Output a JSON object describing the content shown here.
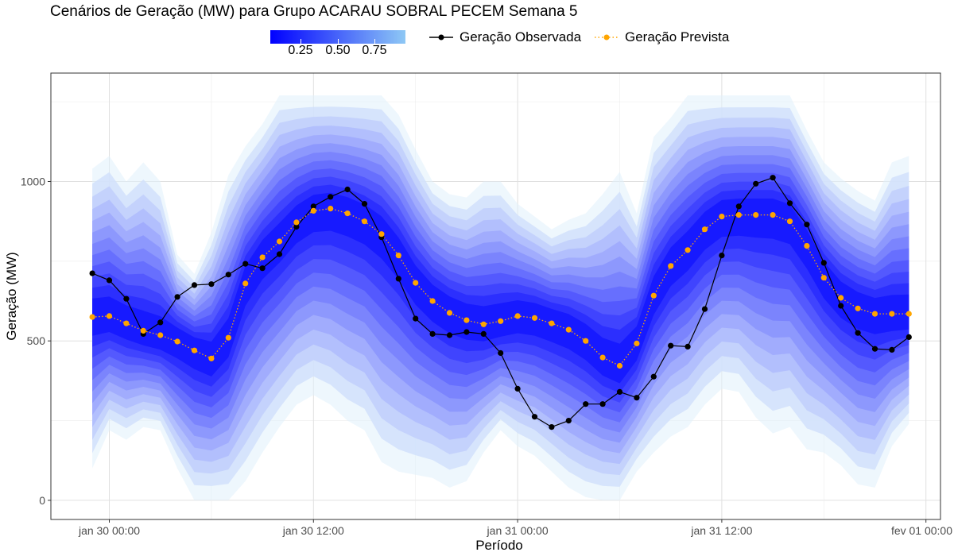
{
  "chart_data": {
    "type": "line",
    "title": "Cenários de Geração (MW) para Grupo ACARAU SOBRAL PECEM Semana 5",
    "xlabel": "Período",
    "ylabel": "Geração (MW)",
    "ylim": [
      -60,
      1340
    ],
    "x_ticks": [
      "jan 30 00:00",
      "jan 30 12:00",
      "jan 31 00:00",
      "jan 31 12:00",
      "fev 01 00:00"
    ],
    "y_ticks": [
      0,
      500,
      1000
    ],
    "grid": true,
    "legend_position": "top",
    "colorbar": {
      "ticks": [
        "0.25",
        "0.50",
        "0.75"
      ],
      "color_low": "#0000ff",
      "color_high": "#8ec8f5"
    },
    "x_hours": [
      -1,
      0,
      1,
      2,
      3,
      4,
      5,
      6,
      7,
      8,
      9,
      10,
      11,
      12,
      13,
      14,
      15,
      16,
      17,
      18,
      19,
      20,
      21,
      22,
      23,
      24,
      25,
      26,
      27,
      28,
      29,
      30,
      31,
      32,
      33,
      34,
      35,
      36,
      37,
      38,
      39,
      40,
      41,
      42,
      43,
      44,
      45,
      46,
      47
    ],
    "series": [
      {
        "name": "Geração Observada",
        "color": "#000000",
        "style": "solid",
        "values": [
          712,
          690,
          632,
          522,
          558,
          638,
          675,
          678,
          708,
          742,
          728,
          772,
          858,
          922,
          952,
          975,
          930,
          825,
          695,
          570,
          522,
          518,
          528,
          522,
          462,
          350,
          262,
          230,
          250,
          302,
          302,
          340,
          322,
          388,
          485,
          482,
          600,
          768,
          922,
          993,
          1012,
          932,
          865,
          745,
          610,
          525,
          475,
          472,
          512
        ]
      },
      {
        "name": "Geração Prevista",
        "color": "#ffa500",
        "style": "dotted",
        "values": [
          575,
          578,
          555,
          532,
          518,
          498,
          470,
          445,
          510,
          680,
          762,
          812,
          872,
          908,
          915,
          900,
          875,
          835,
          768,
          682,
          625,
          588,
          565,
          552,
          562,
          578,
          572,
          555,
          535,
          500,
          448,
          422,
          492,
          642,
          735,
          785,
          850,
          890,
          895,
          895,
          895,
          875,
          798,
          698,
          635,
          602,
          585,
          585,
          585
        ]
      }
    ],
    "scenario_band": {
      "description_levels": "quantile shading from 0.05 to 0.95",
      "upper": [
        1040,
        1080,
        1000,
        1060,
        1000,
        770,
        710,
        840,
        1020,
        1110,
        1180,
        1270,
        1270,
        1270,
        1270,
        1270,
        1270,
        1270,
        1210,
        1100,
        1000,
        960,
        950,
        1000,
        1000,
        930,
        890,
        850,
        880,
        900,
        960,
        1030,
        900,
        1140,
        1200,
        1270,
        1270,
        1270,
        1270,
        1270,
        1270,
        1270,
        1160,
        1060,
        1010,
        970,
        940,
        1060,
        1080
      ],
      "lower": [
        100,
        220,
        190,
        230,
        220,
        100,
        0,
        0,
        0,
        60,
        150,
        230,
        300,
        330,
        300,
        250,
        220,
        120,
        90,
        80,
        70,
        40,
        60,
        150,
        220,
        170,
        140,
        90,
        40,
        10,
        0,
        0,
        90,
        150,
        200,
        230,
        300,
        350,
        340,
        260,
        210,
        230,
        160,
        150,
        110,
        50,
        40,
        170,
        240
      ]
    }
  }
}
